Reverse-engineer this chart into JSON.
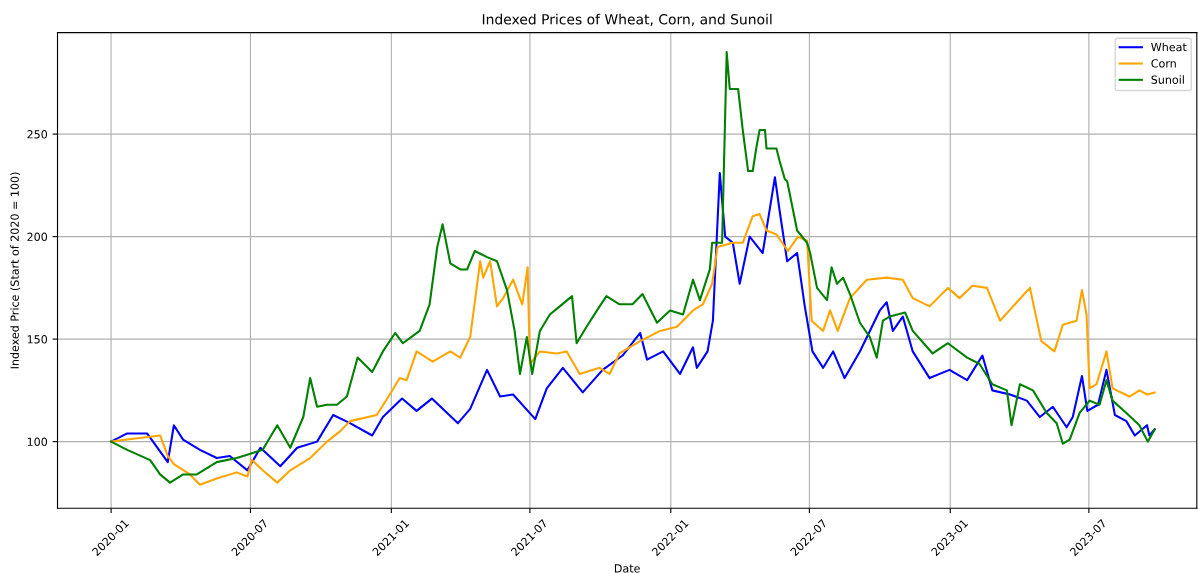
{
  "chart_data": {
    "type": "line",
    "title": "Indexed Prices of Wheat, Corn, and Sunoil",
    "xlabel": "Date",
    "ylabel": "Indexed Price (Start of 2020 = 100)",
    "xlim": [
      "2019-10-23",
      "2023-11-19"
    ],
    "ylim": [
      67.5,
      299.5
    ],
    "xticks": [
      {
        "value": "2020-01-01",
        "label": "2020-01"
      },
      {
        "value": "2020-07-01",
        "label": "2020-07"
      },
      {
        "value": "2021-01-01",
        "label": "2021-01"
      },
      {
        "value": "2021-07-01",
        "label": "2021-07"
      },
      {
        "value": "2022-01-01",
        "label": "2022-01"
      },
      {
        "value": "2022-07-01",
        "label": "2022-07"
      },
      {
        "value": "2023-01-01",
        "label": "2023-01"
      },
      {
        "value": "2023-07-01",
        "label": "2023-07"
      }
    ],
    "yticks": [
      100,
      150,
      200,
      250
    ],
    "grid": true,
    "legend": "top right",
    "marker": "none",
    "line_style": "solid",
    "series": [
      {
        "name": "Wheat",
        "color": "#0000ff",
        "x": [
          "2020-01-01",
          "2020-01-22",
          "2020-02-17",
          "2020-03-15",
          "2020-03-23",
          "2020-04-04",
          "2020-04-26",
          "2020-05-18",
          "2020-06-04",
          "2020-06-27",
          "2020-07-14",
          "2020-08-09",
          "2020-08-31",
          "2020-09-26",
          "2020-10-17",
          "2020-11-08",
          "2020-12-07",
          "2020-12-21",
          "2021-01-15",
          "2021-02-03",
          "2021-02-23",
          "2021-03-29",
          "2021-04-14",
          "2021-05-06",
          "2021-05-23",
          "2021-06-09",
          "2021-07-08",
          "2021-07-23",
          "2021-08-13",
          "2021-09-08",
          "2021-10-04",
          "2021-10-30",
          "2021-11-22",
          "2021-12-01",
          "2021-12-22",
          "2022-01-13",
          "2022-01-30",
          "2022-02-04",
          "2022-02-18",
          "2022-02-25",
          "2022-03-06",
          "2022-03-13",
          "2022-03-23",
          "2022-04-01",
          "2022-04-14",
          "2022-05-01",
          "2022-05-17",
          "2022-05-23",
          "2022-06-02",
          "2022-06-15",
          "2022-06-25",
          "2022-07-05",
          "2022-07-19",
          "2022-08-01",
          "2022-08-16",
          "2022-09-05",
          "2022-10-01",
          "2022-10-10",
          "2022-10-18",
          "2022-10-31",
          "2022-11-13",
          "2022-12-05",
          "2022-12-31",
          "2023-01-23",
          "2023-02-12",
          "2023-02-25",
          "2023-03-20",
          "2023-04-11",
          "2023-04-28",
          "2023-05-15",
          "2023-06-02",
          "2023-06-10",
          "2023-06-22",
          "2023-06-29",
          "2023-07-13",
          "2023-07-24",
          "2023-08-04",
          "2023-08-19",
          "2023-08-30",
          "2023-09-15",
          "2023-09-18",
          "2023-09-25"
        ],
        "values": [
          100,
          104,
          104,
          90,
          108,
          101,
          96,
          92,
          93,
          86,
          97,
          88,
          97,
          100,
          113,
          109,
          103,
          112,
          121,
          115,
          121,
          109,
          116,
          135,
          122,
          123,
          111,
          126,
          136,
          124,
          135,
          142,
          153,
          140,
          144,
          133,
          146,
          136,
          144,
          159,
          231,
          200,
          197,
          177,
          200,
          192,
          229,
          213,
          188,
          192,
          166,
          144,
          136,
          144,
          131,
          144,
          164,
          168,
          154,
          161,
          144,
          131,
          135,
          130,
          142,
          125,
          123,
          120,
          112,
          117,
          107,
          112,
          132,
          115,
          118,
          135,
          113,
          110,
          103,
          108,
          103,
          106
        ]
      },
      {
        "name": "Corn",
        "color": "#ffa500",
        "x": [
          "2020-01-01",
          "2020-01-22",
          "2020-03-05",
          "2020-03-15",
          "2020-03-23",
          "2020-04-13",
          "2020-04-26",
          "2020-05-18",
          "2020-06-13",
          "2020-06-27",
          "2020-07-03",
          "2020-07-17",
          "2020-08-05",
          "2020-08-22",
          "2020-09-17",
          "2020-10-09",
          "2020-10-26",
          "2020-11-08",
          "2020-12-13",
          "2020-12-30",
          "2021-01-12",
          "2021-01-21",
          "2021-02-03",
          "2021-02-24",
          "2021-03-19",
          "2021-04-01",
          "2021-04-14",
          "2021-04-27",
          "2021-05-01",
          "2021-05-10",
          "2021-05-19",
          "2021-05-27",
          "2021-06-09",
          "2021-06-21",
          "2021-06-28",
          "2021-07-01",
          "2021-07-14",
          "2021-08-05",
          "2021-08-18",
          "2021-09-04",
          "2021-09-30",
          "2021-10-13",
          "2021-10-26",
          "2021-11-22",
          "2021-12-18",
          "2022-01-09",
          "2022-01-30",
          "2022-02-12",
          "2022-02-24",
          "2022-03-03",
          "2022-03-23",
          "2022-04-05",
          "2022-04-18",
          "2022-04-27",
          "2022-05-06",
          "2022-05-19",
          "2022-06-03",
          "2022-06-16",
          "2022-06-28",
          "2022-07-04",
          "2022-07-19",
          "2022-07-28",
          "2022-08-07",
          "2022-08-23",
          "2022-09-14",
          "2022-10-10",
          "2022-10-31",
          "2022-11-13",
          "2022-12-05",
          "2022-12-29",
          "2023-01-13",
          "2023-01-30",
          "2023-02-18",
          "2023-03-07",
          "2023-03-24",
          "2023-04-15",
          "2023-04-30",
          "2023-05-17",
          "2023-05-28",
          "2023-06-15",
          "2023-06-22",
          "2023-06-28",
          "2023-07-02",
          "2023-07-11",
          "2023-07-24",
          "2023-08-01",
          "2023-08-23",
          "2023-09-05",
          "2023-09-15",
          "2023-09-25"
        ],
        "values": [
          100,
          101,
          103,
          93,
          89,
          84,
          79,
          82,
          85,
          83,
          91,
          86,
          80,
          86,
          92,
          100,
          105,
          110,
          113,
          123,
          131,
          130,
          144,
          139,
          144,
          141,
          151,
          188,
          180,
          188,
          166,
          170,
          179,
          167,
          185,
          138,
          144,
          143,
          144,
          133,
          136,
          133,
          143,
          149,
          154,
          156,
          164,
          167,
          177,
          195,
          197,
          197,
          210,
          211,
          203,
          201,
          193,
          200,
          198,
          159,
          154,
          164,
          154,
          170,
          179,
          180,
          179,
          170,
          166,
          175,
          170,
          176,
          175,
          159,
          166,
          175,
          149,
          144,
          157,
          159,
          174,
          162,
          126,
          128,
          144,
          126,
          122,
          125,
          123,
          124
        ]
      },
      {
        "name": "Sunoil",
        "color": "#008000",
        "x": [
          "2020-01-01",
          "2020-01-22",
          "2020-02-21",
          "2020-03-05",
          "2020-03-18",
          "2020-03-31",
          "2020-04-04",
          "2020-04-22",
          "2020-05-18",
          "2020-06-13",
          "2020-06-30",
          "2020-07-17",
          "2020-08-05",
          "2020-08-22",
          "2020-09-08",
          "2020-09-17",
          "2020-09-26",
          "2020-10-09",
          "2020-10-22",
          "2020-11-04",
          "2020-11-18",
          "2020-12-07",
          "2020-12-21",
          "2021-01-06",
          "2021-01-16",
          "2021-02-07",
          "2021-02-20",
          "2021-03-02",
          "2021-03-09",
          "2021-03-19",
          "2021-04-01",
          "2021-04-10",
          "2021-04-20",
          "2021-05-06",
          "2021-05-19",
          "2021-06-01",
          "2021-06-11",
          "2021-06-18",
          "2021-06-27",
          "2021-07-04",
          "2021-07-14",
          "2021-07-27",
          "2021-08-09",
          "2021-08-25",
          "2021-08-31",
          "2021-09-13",
          "2021-09-30",
          "2021-10-09",
          "2021-10-26",
          "2021-11-12",
          "2021-11-25",
          "2021-12-14",
          "2021-12-31",
          "2022-01-17",
          "2022-01-30",
          "2022-02-08",
          "2022-02-21",
          "2022-02-24",
          "2022-03-09",
          "2022-03-15",
          "2022-03-19",
          "2022-03-30",
          "2022-04-05",
          "2022-04-12",
          "2022-04-18",
          "2022-04-23",
          "2022-04-27",
          "2022-05-04",
          "2022-05-06",
          "2022-05-19",
          "2022-05-23",
          "2022-05-30",
          "2022-06-02",
          "2022-06-15",
          "2022-06-28",
          "2022-07-02",
          "2022-07-11",
          "2022-07-24",
          "2022-07-30",
          "2022-08-06",
          "2022-08-14",
          "2022-08-23",
          "2022-09-05",
          "2022-09-18",
          "2022-09-27",
          "2022-10-05",
          "2022-10-14",
          "2022-11-03",
          "2022-11-13",
          "2022-12-09",
          "2022-12-29",
          "2023-01-23",
          "2023-02-08",
          "2023-02-25",
          "2023-03-16",
          "2023-03-22",
          "2023-04-02",
          "2023-04-19",
          "2023-05-07",
          "2023-05-20",
          "2023-05-28",
          "2023-06-06",
          "2023-06-19",
          "2023-07-02",
          "2023-07-15",
          "2023-07-24",
          "2023-08-01",
          "2023-08-19",
          "2023-09-05",
          "2023-09-16",
          "2023-09-25"
        ],
        "values": [
          100,
          96,
          91,
          84,
          80,
          83,
          84,
          84,
          90,
          92,
          94,
          96,
          108,
          97,
          112,
          131,
          117,
          118,
          118,
          122,
          141,
          134,
          144,
          153,
          148,
          154,
          167,
          195,
          206,
          187,
          184,
          184,
          193,
          190,
          188,
          174,
          154,
          133,
          151,
          133,
          154,
          162,
          166,
          171,
          148,
          156,
          166,
          171,
          167,
          167,
          172,
          158,
          164,
          162,
          179,
          169,
          184,
          197,
          197,
          290,
          272,
          272,
          252,
          232,
          232,
          244,
          252,
          252,
          243,
          243,
          237,
          228,
          227,
          203,
          197,
          192,
          175,
          169,
          185,
          177,
          180,
          172,
          158,
          151,
          141,
          159,
          161,
          163,
          154,
          143,
          148,
          141,
          138,
          128,
          125,
          108,
          128,
          125,
          114,
          109,
          99,
          101,
          114,
          120,
          118,
          130,
          120,
          114,
          108,
          100,
          106
        ]
      }
    ]
  }
}
